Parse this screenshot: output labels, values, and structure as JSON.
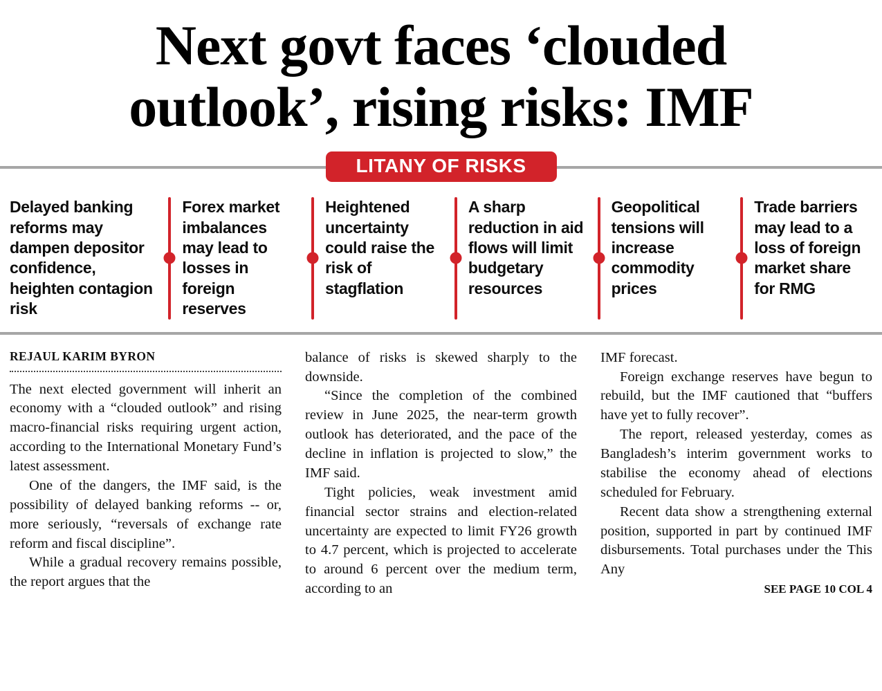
{
  "theme": {
    "accent_color": "#d2232a",
    "rule_color": "#a6a6a6",
    "text_color": "#111111"
  },
  "headline": {
    "line1": "Next govt faces ‘clouded",
    "line2": "outlook’, rising risks: IMF"
  },
  "risk_banner": {
    "label": "LITANY OF RISKS",
    "items": [
      "Delayed banking reforms may dampen depositor confidence, heighten contagion risk",
      "Forex market imbalances may lead to losses in foreign reserves",
      "Heightened uncertainty could raise the risk of stagflation",
      "A sharp reduction in aid flows will limit budgetary resources",
      "Geopolitical tensions will increase commodity prices",
      "Trade barriers may lead to a loss of foreign market share for RMG"
    ]
  },
  "article": {
    "byline": "REJAUL KARIM BYRON",
    "columns": [
      {
        "paragraphs": [
          "The next elected government will inherit an economy with a “clouded outlook” and rising macro-financial risks requiring urgent action, according to the International Monetary Fund’s latest assessment.",
          "One of the dangers, the IMF said, is the possibility of delayed banking reforms -- or, more seriously, “reversals of exchange rate reform and fiscal discipline”.",
          "While a gradual recovery remains possible, the report argues that the"
        ]
      },
      {
        "paragraphs": [
          "balance of risks is skewed sharply to the downside.",
          "“Since the completion of the combined review in June 2025, the near-term growth outlook has deteriorated, and the pace of the decline in inflation is projected to slow,” the IMF said.",
          "Tight policies, weak investment amid financial sector strains and election-related uncertainty are expected to limit FY26 growth to 4.7 percent, which is projected to accelerate to around 6 percent over the medium term, according to an"
        ]
      },
      {
        "paragraphs": [
          "IMF forecast.",
          "Foreign exchange reserves have begun to rebuild, but the IMF cautioned that “buffers have yet to fully recover”.",
          "The report, released yesterday, comes as Bangladesh’s interim government works to stabilise the economy ahead of elections scheduled for February.",
          "Recent data show a strengthening external position, supported in part by continued IMF disbursements. Total purchases under the This Any"
        ]
      }
    ],
    "jump_line": "SEE PAGE 10 COL 4"
  }
}
